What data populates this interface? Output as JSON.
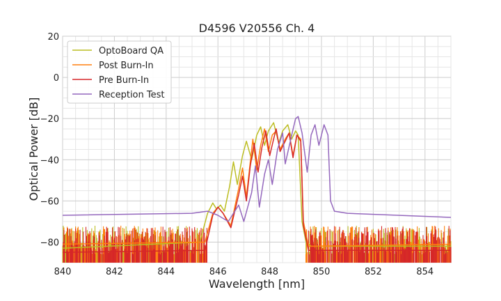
{
  "chart_data": {
    "type": "line",
    "title": "D4596 V20556 Ch. 4",
    "xlabel": "Wavelength [nm]",
    "ylabel": "Optical Power [dB]",
    "xlim": [
      840,
      855
    ],
    "ylim": [
      -90,
      20
    ],
    "xticks": [
      840,
      842,
      844,
      846,
      848,
      850,
      852,
      854
    ],
    "yticks": [
      20,
      0,
      -20,
      -40,
      -60,
      -80
    ],
    "ytick_labels": [
      "20",
      "0",
      "−20",
      "−40",
      "−60",
      "−80"
    ],
    "grid": true,
    "legend_position": "top-left",
    "series": [
      {
        "name": "OptoBoard QA",
        "color": "#bcbd22",
        "points": [
          [
            840.0,
            -83
          ],
          [
            845.3,
            -80
          ],
          [
            845.6,
            -66
          ],
          [
            845.8,
            -61
          ],
          [
            845.95,
            -64
          ],
          [
            846.1,
            -62
          ],
          [
            846.25,
            -65
          ],
          [
            846.45,
            -53
          ],
          [
            846.6,
            -41
          ],
          [
            846.75,
            -52
          ],
          [
            846.95,
            -38
          ],
          [
            847.1,
            -31
          ],
          [
            847.3,
            -40
          ],
          [
            847.5,
            -28
          ],
          [
            847.65,
            -24
          ],
          [
            847.8,
            -33
          ],
          [
            847.95,
            -26
          ],
          [
            848.15,
            -22
          ],
          [
            848.35,
            -32
          ],
          [
            848.5,
            -26
          ],
          [
            848.7,
            -23
          ],
          [
            848.85,
            -30
          ],
          [
            849.0,
            -26
          ],
          [
            849.1,
            -28
          ],
          [
            849.25,
            -70
          ],
          [
            849.4,
            -80
          ],
          [
            849.6,
            -82
          ],
          [
            855.0,
            -82
          ]
        ]
      },
      {
        "name": "Post Burn-In",
        "color": "#ff7f0e",
        "points": [
          [
            840.0,
            -81
          ],
          [
            845.5,
            -80
          ],
          [
            845.8,
            -66
          ],
          [
            846.0,
            -63
          ],
          [
            846.2,
            -66
          ],
          [
            846.5,
            -72
          ],
          [
            846.8,
            -54
          ],
          [
            846.95,
            -44
          ],
          [
            847.1,
            -58
          ],
          [
            847.25,
            -41
          ],
          [
            847.35,
            -30
          ],
          [
            847.5,
            -45
          ],
          [
            847.65,
            -33
          ],
          [
            847.8,
            -25
          ],
          [
            847.95,
            -36
          ],
          [
            848.1,
            -28
          ],
          [
            848.25,
            -26
          ],
          [
            848.4,
            -35
          ],
          [
            848.6,
            -30
          ],
          [
            848.75,
            -27
          ],
          [
            848.9,
            -38
          ],
          [
            849.05,
            -28
          ],
          [
            849.2,
            -30
          ],
          [
            849.3,
            -70
          ],
          [
            849.5,
            -82
          ],
          [
            855.0,
            -81
          ]
        ]
      },
      {
        "name": "Pre Burn-In",
        "color": "#d62728",
        "points": [
          [
            840.0,
            -85
          ],
          [
            845.5,
            -84
          ],
          [
            845.8,
            -67
          ],
          [
            846.0,
            -63
          ],
          [
            846.2,
            -66
          ],
          [
            846.5,
            -73
          ],
          [
            846.8,
            -57
          ],
          [
            846.95,
            -48
          ],
          [
            847.1,
            -60
          ],
          [
            847.25,
            -43
          ],
          [
            847.4,
            -32
          ],
          [
            847.55,
            -46
          ],
          [
            847.7,
            -34
          ],
          [
            847.85,
            -26
          ],
          [
            848.0,
            -38
          ],
          [
            848.15,
            -30
          ],
          [
            848.25,
            -25
          ],
          [
            848.4,
            -36
          ],
          [
            848.6,
            -31
          ],
          [
            848.75,
            -27
          ],
          [
            848.9,
            -39
          ],
          [
            849.05,
            -28
          ],
          [
            849.2,
            -31
          ],
          [
            849.3,
            -72
          ],
          [
            849.5,
            -84
          ],
          [
            855.0,
            -84
          ]
        ]
      },
      {
        "name": "Reception Test",
        "color": "#9467bd",
        "points": [
          [
            840.0,
            -67
          ],
          [
            845.0,
            -66
          ],
          [
            845.6,
            -65
          ],
          [
            846.0,
            -67
          ],
          [
            846.4,
            -70
          ],
          [
            846.8,
            -62
          ],
          [
            847.0,
            -70
          ],
          [
            847.3,
            -56
          ],
          [
            847.45,
            -43
          ],
          [
            847.6,
            -63
          ],
          [
            847.8,
            -47
          ],
          [
            847.95,
            -40
          ],
          [
            848.1,
            -52
          ],
          [
            848.3,
            -35
          ],
          [
            848.5,
            -27
          ],
          [
            848.6,
            -42
          ],
          [
            848.85,
            -28
          ],
          [
            849.0,
            -20
          ],
          [
            849.1,
            -19
          ],
          [
            849.25,
            -27
          ],
          [
            849.45,
            -46
          ],
          [
            849.6,
            -28
          ],
          [
            849.75,
            -23
          ],
          [
            849.9,
            -33
          ],
          [
            850.1,
            -23
          ],
          [
            850.25,
            -28
          ],
          [
            850.35,
            -60
          ],
          [
            850.5,
            -65
          ],
          [
            851.0,
            -66
          ],
          [
            855.0,
            -68
          ]
        ]
      }
    ]
  }
}
